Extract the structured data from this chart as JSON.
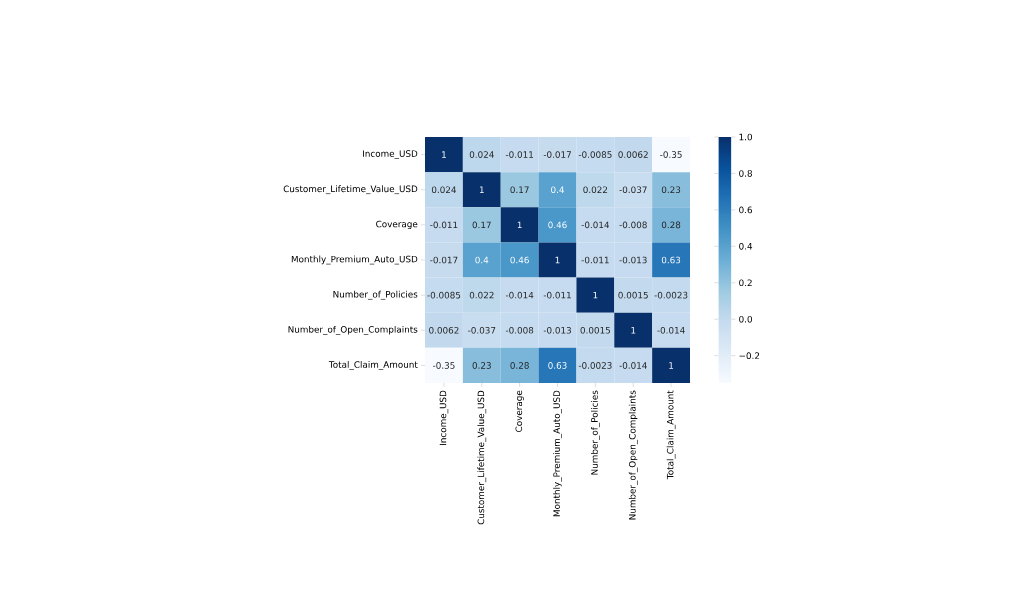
{
  "chart_data": {
    "type": "heatmap",
    "categories": [
      "Income_USD",
      "Customer_Lifetime_Value_USD",
      "Coverage",
      "Monthly_Premium_Auto_USD",
      "Number_of_Policies",
      "Number_of_Open_Complaints",
      "Total_Claim_Amount"
    ],
    "y_categories": [
      "Income_USD",
      "Customer_Lifetime_Value_USD",
      "Coverage",
      "Monthly_Premium_Auto_USD",
      "Number_of_Policies",
      "Number_of_Open_Complaints",
      "Total_Claim_Amount"
    ],
    "cells": [
      [
        1,
        0.024,
        -0.011,
        -0.017,
        -0.0085,
        0.0062,
        -0.35
      ],
      [
        0.024,
        1,
        0.17,
        0.4,
        0.022,
        -0.037,
        0.23
      ],
      [
        -0.011,
        0.17,
        1,
        0.46,
        -0.014,
        -0.008,
        0.28
      ],
      [
        -0.017,
        0.4,
        0.46,
        1,
        -0.011,
        -0.013,
        0.63
      ],
      [
        -0.0085,
        0.022,
        -0.014,
        -0.011,
        1,
        0.0015,
        -0.0023
      ],
      [
        0.0062,
        -0.037,
        -0.008,
        -0.013,
        0.0015,
        1,
        -0.014
      ],
      [
        -0.35,
        0.23,
        0.28,
        0.63,
        -0.0023,
        -0.014,
        1
      ]
    ],
    "clim": [
      -0.35,
      1.0
    ],
    "cticks": [
      {
        "value": -0.2,
        "label": "−0.2"
      },
      {
        "value": 0.0,
        "label": "0.0"
      },
      {
        "value": 0.2,
        "label": "0.2"
      },
      {
        "value": 0.4,
        "label": "0.4"
      },
      {
        "value": 0.6,
        "label": "0.6"
      },
      {
        "value": 0.8,
        "label": "0.8"
      },
      {
        "value": 1.0,
        "label": "1.0"
      }
    ],
    "data_labels": true
  }
}
